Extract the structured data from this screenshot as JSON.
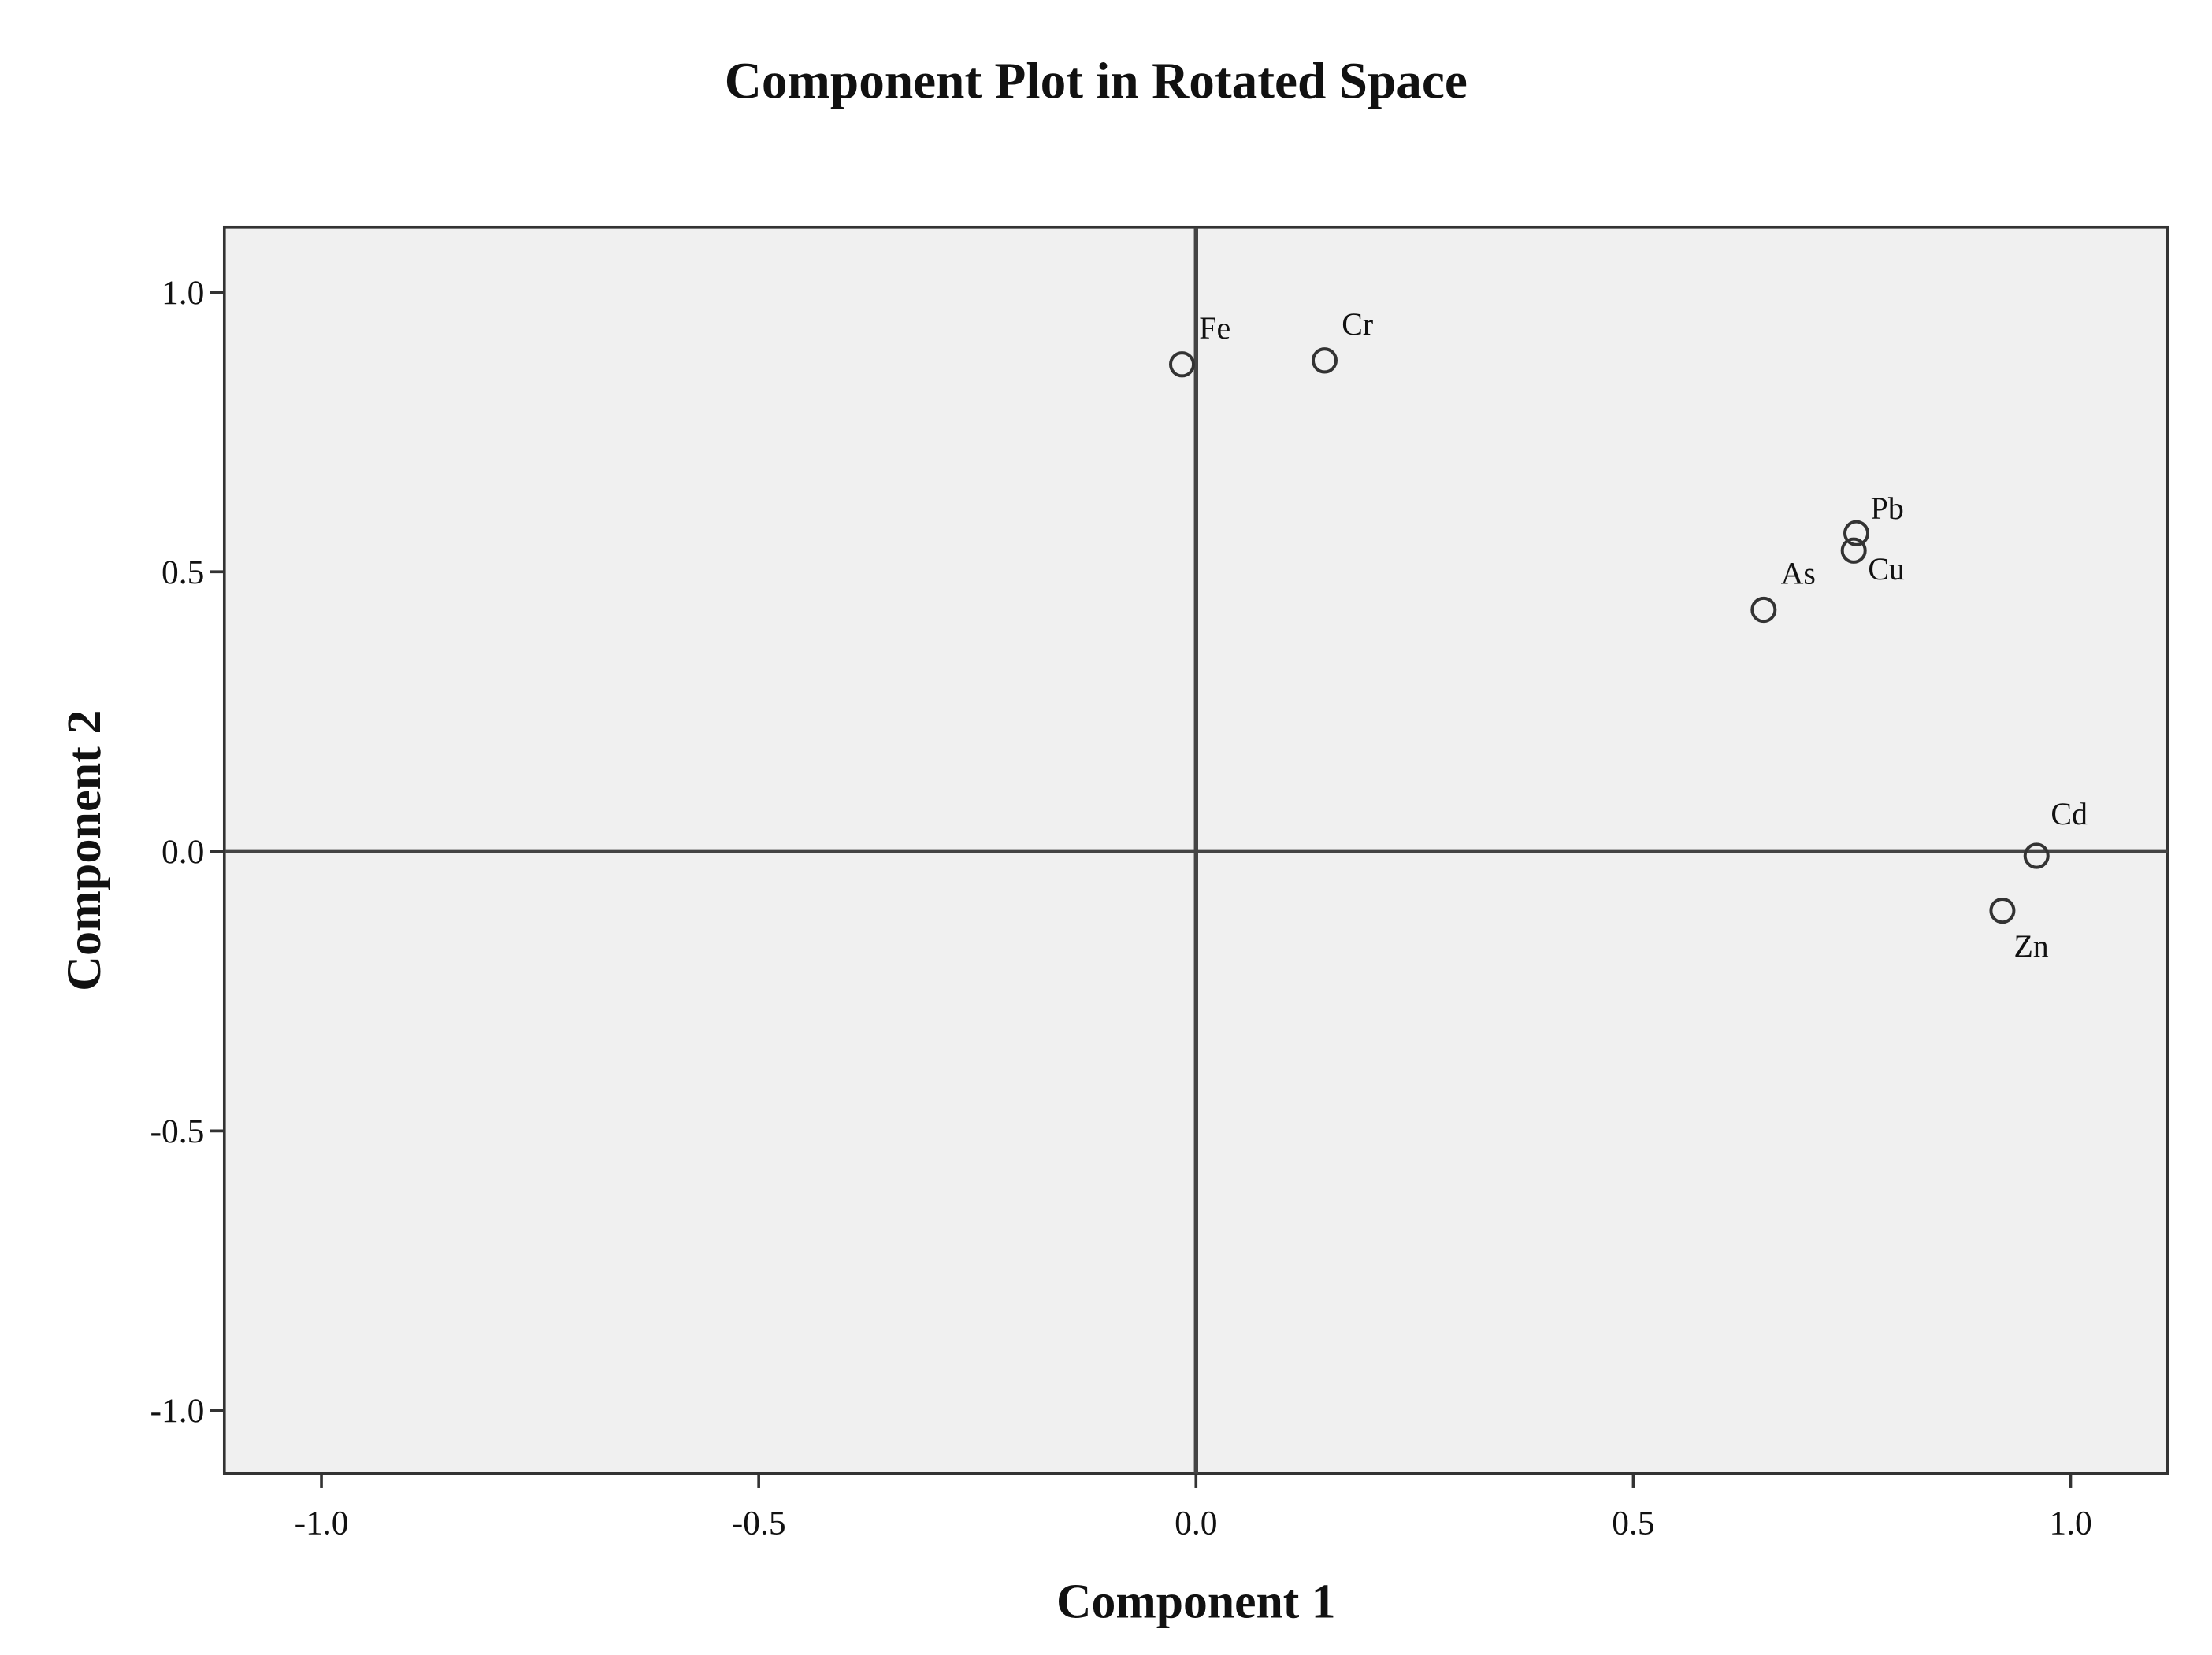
{
  "chart_data": {
    "type": "scatter",
    "title": "Component Plot in Rotated Space",
    "x_label": "Component 1",
    "y_label": "Component 2",
    "labels": [
      "Fe",
      "Cr",
      "Pb",
      "Cu",
      "As",
      "Cd",
      "Zn"
    ],
    "x": [
      -0.016,
      0.147,
      0.755,
      0.752,
      0.649,
      0.961,
      0.922
    ],
    "values": [
      0.871,
      0.878,
      0.569,
      0.538,
      0.432,
      -0.008,
      -0.106
    ],
    "xlim": [
      -1.111,
      1.111
    ],
    "ylim": [
      -1.113,
      1.116
    ],
    "xticks": [
      {
        "value": -1,
        "label": "-1.0"
      },
      -0.5,
      {
        "value": 0,
        "label": "0.0"
      },
      0.5,
      {
        "value": 1,
        "label": "1.0"
      }
    ],
    "yticks": [
      {
        "value": -1,
        "label": "-1.0"
      },
      -0.5,
      {
        "value": 0,
        "label": "0.0"
      },
      0.5,
      {
        "value": 1,
        "label": "1.0"
      }
    ],
    "color": "#333333",
    "background": "#f0f0f0"
  }
}
